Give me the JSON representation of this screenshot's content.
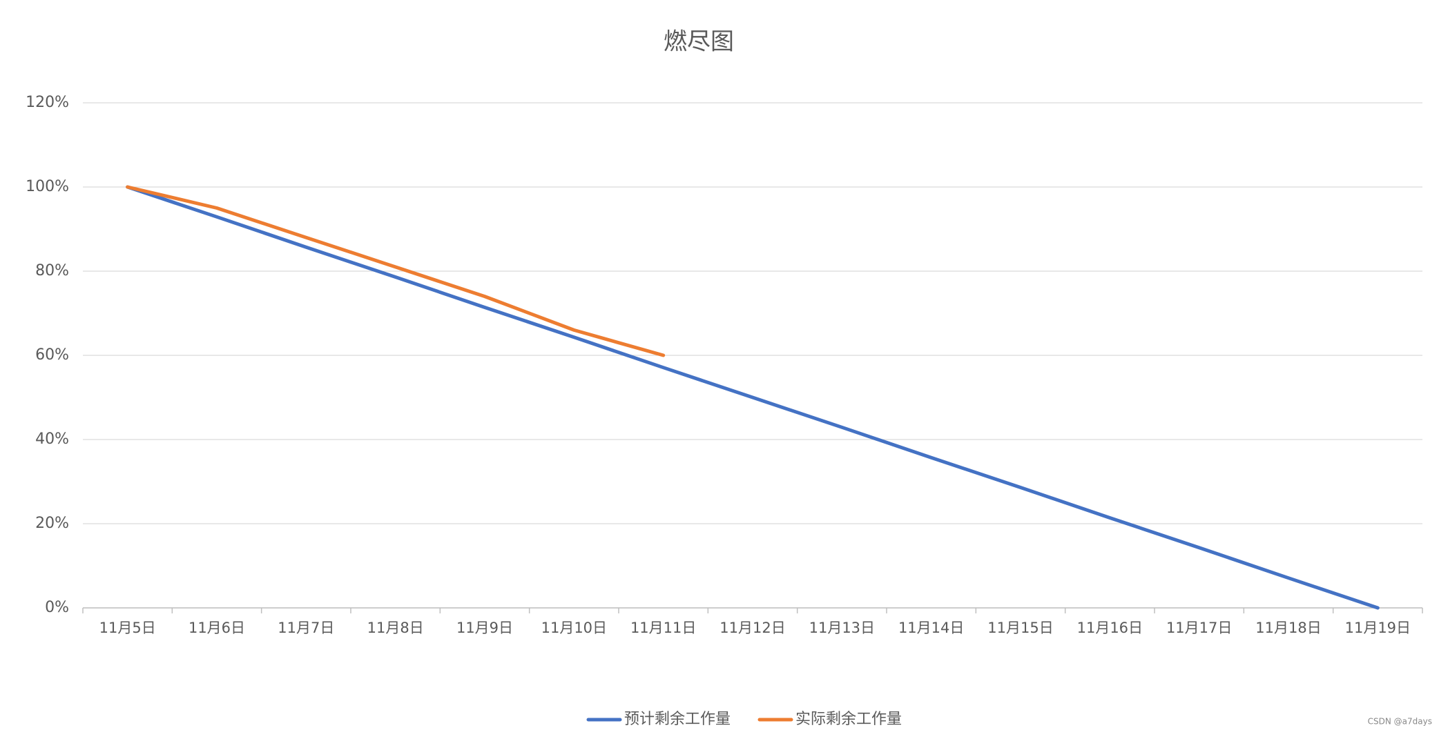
{
  "chart_data": {
    "type": "line",
    "title": "燃尽图",
    "categories": [
      "11月5日",
      "11月6日",
      "11月7日",
      "11月8日",
      "11月9日",
      "11月10日",
      "11月11日",
      "11月12日",
      "11月13日",
      "11月14日",
      "11月15日",
      "11月16日",
      "11月17日",
      "11月18日",
      "11月19日"
    ],
    "series": [
      {
        "name": "预计剩余工作量",
        "color": "#4472c4",
        "values": [
          100,
          92.9,
          85.7,
          78.6,
          71.4,
          64.3,
          57.1,
          50,
          42.9,
          35.7,
          28.6,
          21.4,
          14.3,
          7.1,
          0
        ]
      },
      {
        "name": "实际剩余工作量",
        "color": "#ed7d31",
        "values": [
          100,
          95,
          88,
          81,
          74,
          66,
          60,
          null,
          null,
          null,
          null,
          null,
          null,
          null,
          null
        ]
      }
    ],
    "ylim": [
      0,
      120
    ],
    "yticks": [
      {
        "value": 0,
        "label": "0%"
      },
      {
        "value": 20,
        "label": "20%"
      },
      {
        "value": 40,
        "label": "40%"
      },
      {
        "value": 60,
        "label": "60%"
      },
      {
        "value": 80,
        "label": "80%"
      },
      {
        "value": 100,
        "label": "100%"
      },
      {
        "value": 120,
        "label": "120%"
      }
    ],
    "grid": true,
    "legend": "bottom"
  },
  "watermark": "CSDN @a7days"
}
